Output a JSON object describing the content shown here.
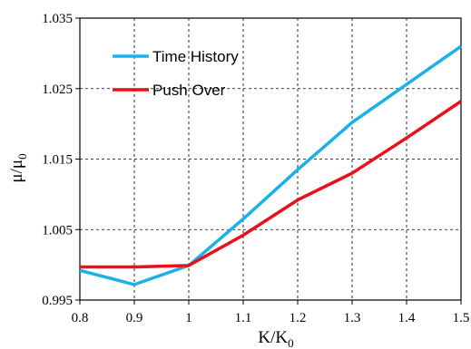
{
  "chart_data": {
    "type": "line",
    "xlabel": "K/K",
    "xlabel_sub": "0",
    "ylabel": "μ/μ",
    "ylabel_sub": "0",
    "xlim": [
      0.8,
      1.5
    ],
    "ylim": [
      0.995,
      1.035
    ],
    "x_ticks": [
      0.8,
      0.9,
      1.0,
      1.1,
      1.2,
      1.3,
      1.4,
      1.5
    ],
    "x_tick_labels": [
      "0.8",
      "0.9",
      "1",
      "1.1",
      "1.2",
      "1.3",
      "1.4",
      "1.5"
    ],
    "y_ticks": [
      0.995,
      1.005,
      1.015,
      1.025,
      1.035
    ],
    "y_tick_labels": [
      "0.995",
      "1.005",
      "1.015",
      "1.025",
      "1.035"
    ],
    "grid": true,
    "legend_position": "top-left",
    "series": [
      {
        "name": "Time History",
        "color": "#1ab0e8",
        "x": [
          0.8,
          0.9,
          1.0,
          1.1,
          1.2,
          1.3,
          1.4,
          1.5
        ],
        "values": [
          0.9992,
          0.9972,
          0.9999,
          1.0065,
          1.0135,
          1.0202,
          1.0256,
          1.031
        ]
      },
      {
        "name": "Push Over",
        "color": "#e8101a",
        "x": [
          0.8,
          0.9,
          1.0,
          1.1,
          1.2,
          1.3,
          1.4,
          1.5
        ],
        "values": [
          0.9997,
          0.9997,
          0.9999,
          1.0042,
          1.0092,
          1.013,
          1.018,
          1.0232
        ]
      }
    ]
  }
}
